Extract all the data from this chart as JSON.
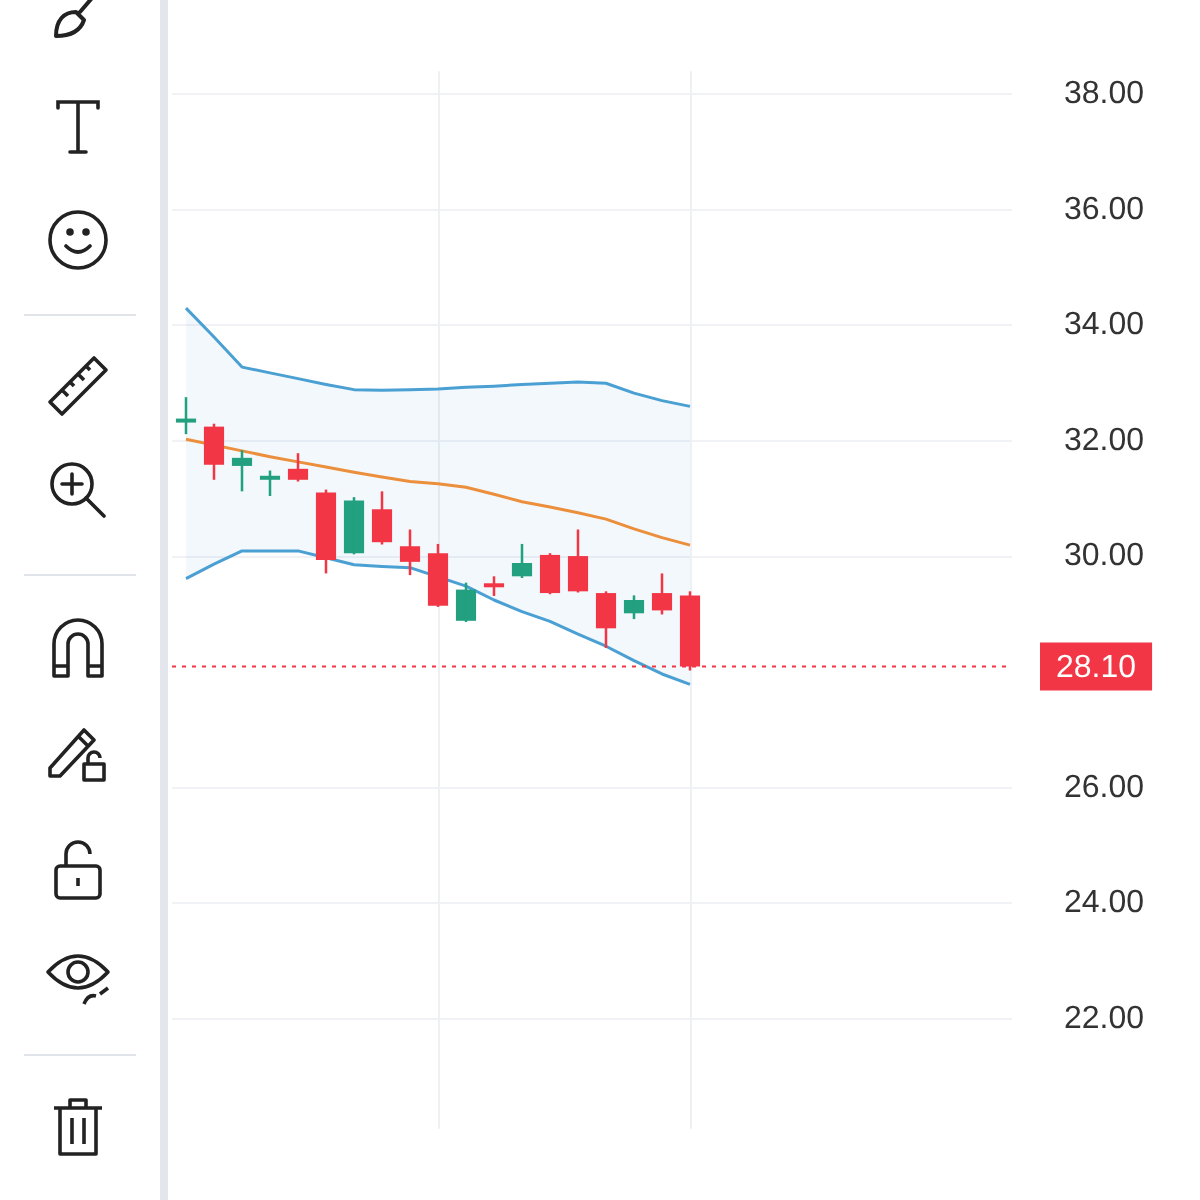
{
  "chart_data": {
    "type": "candlestick",
    "categories": [
      null,
      null,
      null,
      null,
      null,
      null,
      null,
      null,
      null,
      null,
      null,
      null,
      null,
      null,
      null,
      null,
      null,
      null,
      null,
      null,
      null,
      null,
      null,
      null,
      null,
      null,
      null,
      null,
      null,
      null
    ],
    "ohlc": [
      [
        32.32,
        32.76,
        32.12,
        32.37
      ],
      [
        32.25,
        32.3,
        31.33,
        31.59
      ],
      [
        31.57,
        31.84,
        31.13,
        31.71
      ],
      [
        31.33,
        31.49,
        31.05,
        31.35
      ],
      [
        31.52,
        31.79,
        31.3,
        31.33
      ],
      [
        31.11,
        31.16,
        29.71,
        29.94
      ],
      [
        30.06,
        31.03,
        30.04,
        30.97
      ],
      [
        30.82,
        31.13,
        30.21,
        30.25
      ],
      [
        30.18,
        30.47,
        29.68,
        29.91
      ],
      [
        30.06,
        30.22,
        29.13,
        29.15
      ],
      [
        28.89,
        29.55,
        28.87,
        29.43
      ],
      [
        29.5,
        29.66,
        29.32,
        29.47
      ],
      [
        29.66,
        30.22,
        29.63,
        29.89
      ],
      [
        30.03,
        30.06,
        29.35,
        29.37
      ],
      [
        30.01,
        30.47,
        29.38,
        29.4
      ],
      [
        29.37,
        29.4,
        28.42,
        28.76
      ],
      [
        29.02,
        29.33,
        28.92,
        29.25
      ],
      [
        29.37,
        29.71,
        29.0,
        29.07
      ],
      [
        29.33,
        29.4,
        28.03,
        28.1
      ],
      null,
      null,
      null,
      null,
      null,
      null,
      null,
      null,
      null,
      null,
      null
    ],
    "colors": [
      "#22a07f",
      "#f23645",
      "#22a07f",
      "#22a07f",
      "#f23645",
      "#f23645",
      "#22a07f",
      "#f23645",
      "#f23645",
      "#f23645",
      "#22a07f",
      "#f23645",
      "#22a07f",
      "#f23645",
      "#f23645",
      "#f23645",
      "#22a07f",
      "#f23645",
      "#f23645",
      null,
      null,
      null,
      null,
      null,
      null,
      null,
      null,
      null,
      null,
      null
    ],
    "series": [
      {
        "type": "line",
        "color": "#4a9fd3",
        "values": [
          34.3,
          33.8,
          33.28,
          33.18,
          33.08,
          32.98,
          32.89,
          32.88,
          32.89,
          32.9,
          32.93,
          32.95,
          32.98,
          33.0,
          33.02,
          33.0,
          32.83,
          32.7,
          32.6,
          null,
          null,
          null,
          null,
          null,
          null,
          null,
          null,
          null,
          null,
          null
        ]
      },
      {
        "type": "line",
        "color": "#ec8f3c",
        "lower": [
          29.62,
          29.87,
          30.1,
          30.1,
          30.1,
          29.98,
          29.86,
          29.83,
          29.81,
          29.68,
          29.49,
          29.25,
          29.05,
          28.88,
          28.66,
          28.45,
          28.2,
          27.97,
          27.79,
          null,
          null,
          null,
          null,
          null,
          null,
          null,
          null,
          null,
          null,
          null
        ],
        "upper": [
          34.3,
          33.8,
          33.28,
          33.18,
          33.08,
          32.98,
          32.89,
          32.88,
          32.89,
          32.9,
          32.93,
          32.95,
          32.98,
          33.0,
          33.02,
          33.0,
          32.83,
          32.7,
          32.6,
          null,
          null,
          null,
          null,
          null,
          null,
          null,
          null,
          null,
          null,
          null
        ],
        "values": [
          32.03,
          null,
          31.83,
          31.73,
          31.64,
          31.55,
          31.46,
          31.38,
          31.3,
          31.26,
          31.2,
          31.08,
          30.95,
          30.86,
          30.76,
          30.65,
          30.48,
          30.33,
          30.2,
          null,
          null,
          null,
          null,
          null,
          null,
          null,
          null,
          null,
          null,
          null
        ]
      },
      {
        "type": "line",
        "color": "#4a9fd3",
        "values": [
          29.62,
          29.87,
          30.1,
          30.1,
          30.1,
          29.98,
          29.86,
          29.83,
          29.81,
          null,
          29.49,
          29.25,
          29.05,
          28.88,
          28.66,
          28.45,
          28.2,
          27.97,
          27.79,
          null,
          null,
          null,
          null,
          null,
          null,
          null,
          null,
          null,
          null,
          null
        ]
      }
    ],
    "ylim": [
      20.1,
      38.4
    ],
    "yticks": [
      {
        "value": 22,
        "label": "22.00"
      },
      {
        "value": 24,
        "label": "24.00"
      },
      {
        "value": 26,
        "label": "26.00"
      },
      {
        "value": 30,
        "label": "30.00"
      },
      {
        "value": 32,
        "label": "32.00"
      },
      {
        "value": 34,
        "label": "34.00"
      },
      {
        "value": 36,
        "label": "36.00"
      },
      {
        "value": 38,
        "label": "38.00"
      }
    ],
    "ref_lines": [
      {
        "axis": "y",
        "value": 28.1,
        "label": "28.10",
        "color": "#f23645",
        "line_style": "dotted"
      }
    ],
    "grid": true,
    "tick_labels": "y"
  }
}
